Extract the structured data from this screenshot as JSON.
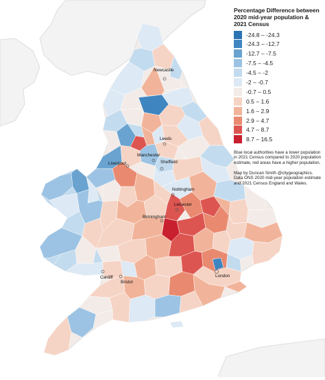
{
  "legend": {
    "title": "Percentage Difference between 2020 mid-year population & 2021 Census",
    "items": [
      {
        "label": "-24.8  –  -24.3",
        "color": "#2a74b4"
      },
      {
        "label": "-24.3  –  -12.7",
        "color": "#3f86c1"
      },
      {
        "label": "-12.7  –  -7.5",
        "color": "#6aa3d0"
      },
      {
        "label": "-7.5  –  -4.5",
        "color": "#9cc3e3"
      },
      {
        "label": "-4.5  –  -2",
        "color": "#c3dbee"
      },
      {
        "label": "-2  –  -0.7",
        "color": "#dde9f4"
      },
      {
        "label": "-0.7  –  0.5",
        "color": "#f2ebe8"
      },
      {
        "label": "0.5  –  1.6",
        "color": "#f6d4c5"
      },
      {
        "label": "1.6  –  2.9",
        "color": "#f1b49a"
      },
      {
        "label": "2.9  –  4.7",
        "color": "#e98a70"
      },
      {
        "label": "4.7  –  8.7",
        "color": "#dd5550"
      },
      {
        "label": "8.7  –  16.5",
        "color": "#c9202f"
      }
    ]
  },
  "notes": {
    "note1": "Blue local authorities have a lower population in 2021 Census compared to 2020 population estimate, red areas have a higher population.",
    "note2": "Map by Duncan Smith @citygeographics. Data ONS 2020 mid-year population estimate and 2021 Census England and Wales."
  },
  "cities": {
    "newcastle": "Newcastle",
    "leeds": "Leeds",
    "manchester": "Manchester",
    "liverpool": "Liverpool",
    "sheffield": "Sheffield",
    "nottingham": "Nottingham",
    "leicester": "Leicester",
    "birmingham": "Birmingham",
    "cardiff": "Cardiff",
    "bristol": "Bristol",
    "london": "London"
  }
}
